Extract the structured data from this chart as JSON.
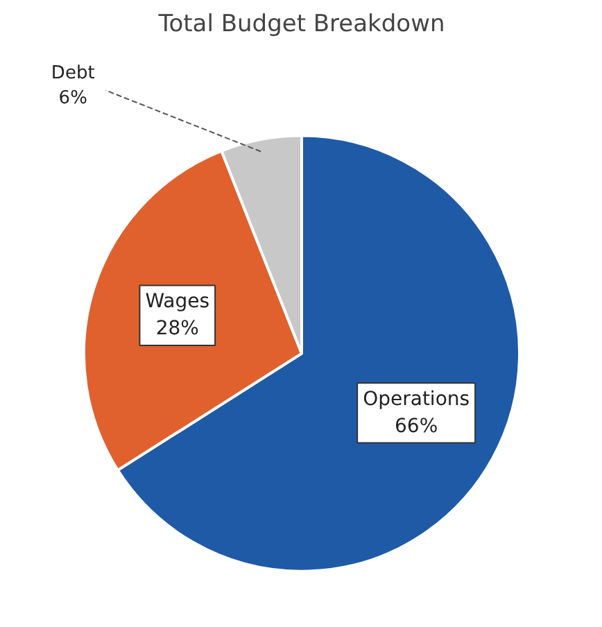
{
  "chart_data": {
    "type": "pie",
    "title": "Total Budget Breakdown",
    "categories": [
      "Operations",
      "Wages",
      "Debt"
    ],
    "values": [
      66,
      28,
      6
    ],
    "colors": [
      "#1f5aa6",
      "#e0612e",
      "#c8c8c8"
    ],
    "value_labels": [
      "66%",
      "28%",
      "6%"
    ]
  }
}
